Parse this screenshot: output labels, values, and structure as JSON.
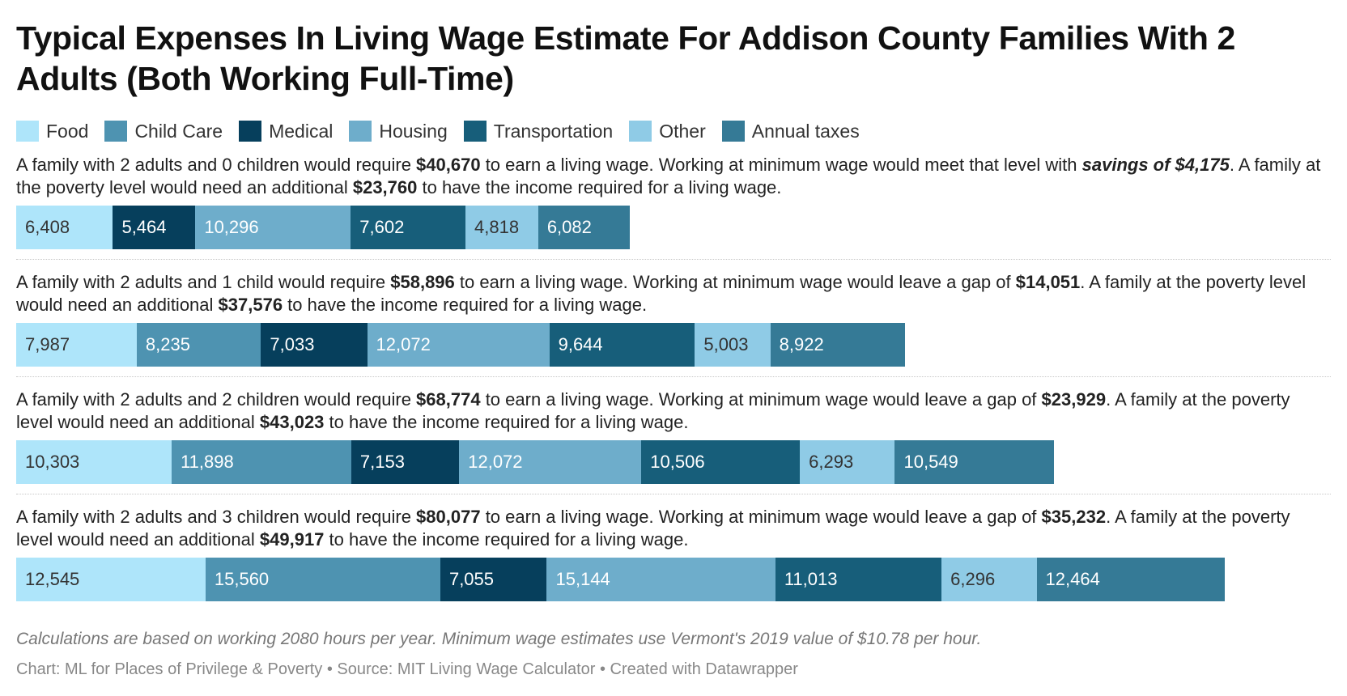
{
  "title": "Typical Expenses In Living Wage Estimate For Addison County Families With 2 Adults (Both Working Full-Time)",
  "legend": [
    {
      "label": "Food",
      "color": "#aee5fa"
    },
    {
      "label": "Child Care",
      "color": "#4e93b1"
    },
    {
      "label": "Medical",
      "color": "#063f5c"
    },
    {
      "label": "Housing",
      "color": "#6eadcb"
    },
    {
      "label": "Transportation",
      "color": "#175e7a"
    },
    {
      "label": "Other",
      "color": "#8fcbe6"
    },
    {
      "label": "Annual taxes",
      "color": "#357a96"
    }
  ],
  "rows": [
    {
      "text_parts": [
        {
          "t": "A family with 2 adults and 0 children would require "
        },
        {
          "t": "$40,670",
          "s": "b"
        },
        {
          "t": " to earn a living wage. Working at minimum wage would meet that level with "
        },
        {
          "t": "savings of $4,175",
          "s": "bi"
        },
        {
          "t": ". A family at the poverty level would need an additional "
        },
        {
          "t": "$23,760",
          "s": "b"
        },
        {
          "t": " to have the income required for a living wage."
        }
      ]
    },
    {
      "text_parts": [
        {
          "t": "A family with 2 adults and 1 child would require "
        },
        {
          "t": "$58,896",
          "s": "b"
        },
        {
          "t": " to earn a living wage. Working at minimum wage would leave a gap of "
        },
        {
          "t": "$14,051",
          "s": "b"
        },
        {
          "t": ". A family at the poverty level would need an additional "
        },
        {
          "t": "$37,576",
          "s": "b"
        },
        {
          "t": " to have the income required for a living wage."
        }
      ]
    },
    {
      "text_parts": [
        {
          "t": "A family with 2 adults and 2 children would require "
        },
        {
          "t": "$68,774",
          "s": "b"
        },
        {
          "t": " to earn a living wage. Working at minimum wage would leave a gap of "
        },
        {
          "t": "$23,929",
          "s": "b"
        },
        {
          "t": ". A family at the poverty level would need an additional "
        },
        {
          "t": "$43,023",
          "s": "b"
        },
        {
          "t": " to have the income required for a living wage."
        }
      ]
    },
    {
      "text_parts": [
        {
          "t": "A family with 2 adults and 3 children would require "
        },
        {
          "t": "$80,077",
          "s": "b"
        },
        {
          "t": " to earn a living wage. Working at minimum wage would leave a gap of "
        },
        {
          "t": "$35,232",
          "s": "b"
        },
        {
          "t": ". A family at the poverty level would need an additional "
        },
        {
          "t": "$49,917",
          "s": "b"
        },
        {
          "t": " to have the income required for a living wage."
        }
      ]
    }
  ],
  "chart_data": {
    "type": "bar",
    "orientation": "horizontal",
    "stacked": true,
    "categories": [
      "2 adults, 0 children",
      "2 adults, 1 child",
      "2 adults, 2 children",
      "2 adults, 3 children"
    ],
    "xlim": [
      0,
      87110
    ],
    "series": [
      {
        "name": "Food",
        "values": [
          6408,
          7987,
          10303,
          12545
        ]
      },
      {
        "name": "Child Care",
        "values": [
          0,
          8235,
          11898,
          15560
        ]
      },
      {
        "name": "Medical",
        "values": [
          5464,
          7033,
          7153,
          7055
        ]
      },
      {
        "name": "Housing",
        "values": [
          10296,
          12072,
          12072,
          15144
        ]
      },
      {
        "name": "Transportation",
        "values": [
          7602,
          9644,
          10506,
          11013
        ]
      },
      {
        "name": "Other",
        "values": [
          4818,
          5003,
          6293,
          6296
        ]
      },
      {
        "name": "Annual taxes",
        "values": [
          6082,
          8922,
          10549,
          12464
        ]
      }
    ],
    "labels": [
      [
        "6,408",
        "",
        "5,464",
        "10,296",
        "7,602",
        "4,818",
        "6,082"
      ],
      [
        "7,987",
        "8,235",
        "7,033",
        "12,072",
        "9,644",
        "5,003",
        "8,922"
      ],
      [
        "10,303",
        "11,898",
        "7,153",
        "12,072",
        "10,506",
        "6,293",
        "10,549"
      ],
      [
        "12,545",
        "15,560",
        "7,055",
        "15,144",
        "11,013",
        "6,296",
        "12,464"
      ]
    ],
    "label_colors": [
      "#333333",
      "#ffffff",
      "#ffffff",
      "#ffffff",
      "#ffffff",
      "#333333",
      "#ffffff"
    ],
    "legend_position": "top",
    "grid": false
  },
  "notes": "Calculations are based on working 2080 hours per year. Minimum wage estimates use Vermont's 2019 value of $10.78 per hour.",
  "credit": "Chart: ML for Places of Privilege & Poverty • Source: MIT Living Wage Calculator • Created with Datawrapper"
}
